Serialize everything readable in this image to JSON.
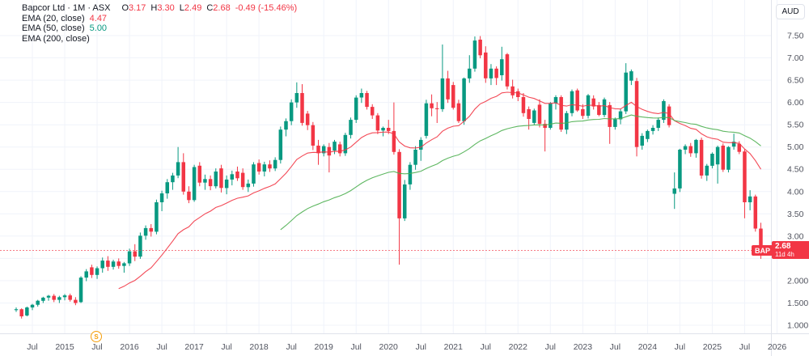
{
  "legend": {
    "symbol_title": "Bapcor Ltd · 1M · ASX",
    "ohlc": {
      "o_label": "O",
      "o": "3.17",
      "h_label": "H",
      "h": "3.30",
      "l_label": "L",
      "l": "2.49",
      "c_label": "C",
      "c": "2.68",
      "change": "-0.49 (-15.46%)"
    },
    "indicators": [
      {
        "label": "EMA (20, close)",
        "value": "4.47"
      },
      {
        "label": "EMA (50, close)",
        "value": "5.00"
      },
      {
        "label": "EMA (200, close)",
        "value": ""
      }
    ]
  },
  "price_axis": {
    "currency": "AUD",
    "tag": {
      "symbol": "BAP",
      "price": "2.68",
      "countdown": "11d 4h"
    }
  },
  "event_marker": {
    "label": "S"
  },
  "colors": {
    "up": "#089981",
    "down": "#f23645",
    "ema20": "#f23645",
    "ema50": "#4caf50",
    "grid": "#f0f3fa",
    "axis_text": "#50535e",
    "separator": "#e0e3eb",
    "last_price_line": "#f23645"
  },
  "chart_data": {
    "type": "candlestick",
    "title": "Bapcor Ltd",
    "exchange": "ASX",
    "interval": "1M",
    "currency": "AUD",
    "last_price": 2.68,
    "ylim": [
      0.82,
      8.3
    ],
    "x_range": [
      "2014-04",
      "2026-01"
    ],
    "grid": true,
    "y_ticks": [
      {
        "value": 7.5,
        "label": "7.50"
      },
      {
        "value": 7.0,
        "label": "7.00"
      },
      {
        "value": 6.5,
        "label": "6.50"
      },
      {
        "value": 6.0,
        "label": "6.00"
      },
      {
        "value": 5.5,
        "label": "5.50"
      },
      {
        "value": 5.0,
        "label": "5.00"
      },
      {
        "value": 4.5,
        "label": "4.50"
      },
      {
        "value": 4.0,
        "label": "4.00"
      },
      {
        "value": 3.5,
        "label": "3.50"
      },
      {
        "value": 3.0,
        "label": "3.00"
      },
      {
        "value": 2.5,
        "label": ""
      },
      {
        "value": 2.0,
        "label": "2.000"
      },
      {
        "value": 1.5,
        "label": "1.500"
      },
      {
        "value": 1.0,
        "label": "1.000"
      }
    ],
    "x_ticks": [
      {
        "bar": 3,
        "label": "Jul"
      },
      {
        "bar": 9,
        "label": "2015"
      },
      {
        "bar": 15,
        "label": "Jul"
      },
      {
        "bar": 21,
        "label": "2016"
      },
      {
        "bar": 27,
        "label": "Jul"
      },
      {
        "bar": 33,
        "label": "2017"
      },
      {
        "bar": 39,
        "label": "Jul"
      },
      {
        "bar": 45,
        "label": "2018"
      },
      {
        "bar": 51,
        "label": "Jul"
      },
      {
        "bar": 57,
        "label": "2019"
      },
      {
        "bar": 63,
        "label": "Jul"
      },
      {
        "bar": 69,
        "label": "2020"
      },
      {
        "bar": 75,
        "label": "Jul"
      },
      {
        "bar": 81,
        "label": "2021"
      },
      {
        "bar": 87,
        "label": "Jul"
      },
      {
        "bar": 93,
        "label": "2022"
      },
      {
        "bar": 99,
        "label": "Jul"
      },
      {
        "bar": 105,
        "label": "2023"
      },
      {
        "bar": 111,
        "label": "Jul"
      },
      {
        "bar": 117,
        "label": "2024"
      },
      {
        "bar": 123,
        "label": "Jul"
      },
      {
        "bar": 129,
        "label": "2025"
      },
      {
        "bar": 135,
        "label": "Jul"
      },
      {
        "bar": 141,
        "label": "2026"
      }
    ],
    "overlays": [
      {
        "name": "EMA",
        "period": 20,
        "color": "#f23645",
        "last_value": 4.47
      },
      {
        "name": "EMA",
        "period": 50,
        "color": "#4caf50",
        "last_value": 5.0
      },
      {
        "name": "EMA",
        "period": 200,
        "color": "#2962ff",
        "last_value": null
      }
    ],
    "event_markers": [
      {
        "bar": 15,
        "label": "S"
      }
    ],
    "ohlc_columns": [
      "month",
      "open",
      "high",
      "low",
      "close"
    ],
    "months": [
      [
        "2014-04",
        1.34,
        1.4,
        1.3,
        1.36
      ],
      [
        "2014-05",
        1.36,
        1.38,
        1.15,
        1.2
      ],
      [
        "2014-06",
        1.22,
        1.42,
        1.2,
        1.4
      ],
      [
        "2014-07",
        1.4,
        1.48,
        1.34,
        1.46
      ],
      [
        "2014-08",
        1.46,
        1.57,
        1.42,
        1.55
      ],
      [
        "2014-09",
        1.55,
        1.64,
        1.5,
        1.62
      ],
      [
        "2014-10",
        1.62,
        1.68,
        1.55,
        1.66
      ],
      [
        "2014-11",
        1.66,
        1.7,
        1.52,
        1.57
      ],
      [
        "2014-12",
        1.57,
        1.66,
        1.5,
        1.63
      ],
      [
        "2015-01",
        1.63,
        1.7,
        1.56,
        1.67
      ],
      [
        "2015-02",
        1.67,
        1.71,
        1.53,
        1.57
      ],
      [
        "2015-03",
        1.57,
        1.63,
        1.45,
        1.5
      ],
      [
        "2015-04",
        1.52,
        2.1,
        1.5,
        2.07
      ],
      [
        "2015-05",
        2.07,
        2.26,
        1.99,
        2.21
      ],
      [
        "2015-06",
        2.3,
        2.36,
        2.06,
        2.13
      ],
      [
        "2015-07",
        2.13,
        2.32,
        2.04,
        2.28
      ],
      [
        "2015-08",
        2.28,
        2.52,
        2.18,
        2.45
      ],
      [
        "2015-09",
        2.45,
        2.55,
        2.22,
        2.31
      ],
      [
        "2015-10",
        2.31,
        2.47,
        2.25,
        2.43
      ],
      [
        "2015-11",
        2.43,
        2.5,
        2.27,
        2.33
      ],
      [
        "2015-12",
        2.33,
        2.42,
        2.18,
        2.39
      ],
      [
        "2016-01",
        2.39,
        2.72,
        2.33,
        2.66
      ],
      [
        "2016-02",
        2.66,
        2.82,
        2.44,
        2.54
      ],
      [
        "2016-03",
        2.54,
        3.08,
        2.49,
        3.01
      ],
      [
        "2016-04",
        3.01,
        3.24,
        2.92,
        3.18
      ],
      [
        "2016-05",
        3.18,
        3.27,
        2.99,
        3.1
      ],
      [
        "2016-06",
        3.1,
        3.82,
        3.04,
        3.76
      ],
      [
        "2016-07",
        3.76,
        4.02,
        3.56,
        3.96
      ],
      [
        "2016-08",
        3.96,
        4.28,
        3.84,
        4.21
      ],
      [
        "2016-09",
        4.21,
        4.42,
        4.04,
        4.36
      ],
      [
        "2016-10",
        4.36,
        5.0,
        4.3,
        4.66
      ],
      [
        "2016-11",
        4.66,
        4.86,
        3.93,
        4.0
      ],
      [
        "2016-12",
        4.0,
        4.12,
        3.74,
        3.81
      ],
      [
        "2017-01",
        3.81,
        4.6,
        3.77,
        4.55
      ],
      [
        "2017-02",
        4.58,
        4.66,
        4.12,
        4.2
      ],
      [
        "2017-03",
        4.2,
        4.38,
        4.04,
        4.28
      ],
      [
        "2017-04",
        4.28,
        4.36,
        4.03,
        4.12
      ],
      [
        "2017-05",
        4.12,
        4.52,
        4.07,
        4.45
      ],
      [
        "2017-06",
        4.52,
        4.6,
        3.98,
        4.08
      ],
      [
        "2017-07",
        4.08,
        4.36,
        3.94,
        4.27
      ],
      [
        "2017-08",
        4.27,
        4.47,
        4.14,
        4.39
      ],
      [
        "2017-09",
        4.45,
        4.56,
        4.24,
        4.3
      ],
      [
        "2017-10",
        4.42,
        4.52,
        4.04,
        4.1
      ],
      [
        "2017-11",
        4.1,
        4.27,
        3.99,
        4.18
      ],
      [
        "2017-12",
        4.18,
        4.66,
        4.11,
        4.61
      ],
      [
        "2018-01",
        4.64,
        4.72,
        4.38,
        4.45
      ],
      [
        "2018-02",
        4.45,
        4.67,
        4.34,
        4.61
      ],
      [
        "2018-03",
        4.61,
        4.7,
        4.44,
        4.52
      ],
      [
        "2018-04",
        4.52,
        4.77,
        4.46,
        4.71
      ],
      [
        "2018-05",
        4.71,
        5.46,
        4.63,
        5.39
      ],
      [
        "2018-06",
        5.39,
        5.64,
        5.24,
        5.58
      ],
      [
        "2018-07",
        5.58,
        6.07,
        5.49,
        6.0
      ],
      [
        "2018-08",
        6.0,
        6.45,
        5.88,
        6.21
      ],
      [
        "2018-09",
        6.21,
        6.41,
        5.48,
        5.54
      ],
      [
        "2018-10",
        5.75,
        5.81,
        5.38,
        5.49
      ],
      [
        "2018-11",
        5.49,
        5.56,
        4.93,
        5.03
      ],
      [
        "2018-12",
        5.03,
        5.16,
        4.6,
        4.86
      ],
      [
        "2019-01",
        4.86,
        5.06,
        4.79,
        5.02
      ],
      [
        "2019-02",
        5.0,
        5.09,
        4.43,
        4.81
      ],
      [
        "2019-03",
        4.92,
        5.16,
        4.84,
        5.12
      ],
      [
        "2019-04",
        5.06,
        5.12,
        4.79,
        4.86
      ],
      [
        "2019-05",
        4.86,
        5.32,
        4.8,
        5.27
      ],
      [
        "2019-06",
        5.27,
        5.66,
        5.19,
        5.61
      ],
      [
        "2019-07",
        5.61,
        6.16,
        5.54,
        6.11
      ],
      [
        "2019-08",
        6.11,
        6.31,
        5.99,
        6.21
      ],
      [
        "2019-09",
        6.21,
        6.26,
        5.84,
        5.9
      ],
      [
        "2019-10",
        5.9,
        5.96,
        5.63,
        5.71
      ],
      [
        "2019-11",
        5.71,
        5.76,
        5.29,
        5.37
      ],
      [
        "2019-12",
        5.37,
        5.46,
        5.24,
        5.43
      ],
      [
        "2020-01",
        5.43,
        5.61,
        5.29,
        5.36
      ],
      [
        "2020-02",
        5.36,
        6.0,
        4.83,
        4.89
      ],
      [
        "2020-03",
        4.89,
        4.95,
        2.36,
        3.4
      ],
      [
        "2020-04",
        3.4,
        4.26,
        3.34,
        4.16
      ],
      [
        "2020-05",
        4.16,
        4.66,
        4.04,
        4.6
      ],
      [
        "2020-06",
        4.6,
        5.02,
        4.49,
        4.94
      ],
      [
        "2020-07",
        4.94,
        5.22,
        4.69,
        5.16
      ],
      [
        "2020-08",
        5.25,
        6.06,
        5.19,
        5.98
      ],
      [
        "2020-09",
        5.98,
        6.18,
        5.69,
        5.87
      ],
      [
        "2020-10",
        5.87,
        6.01,
        5.54,
        5.85
      ],
      [
        "2020-11",
        5.85,
        7.3,
        5.79,
        6.54
      ],
      [
        "2020-12",
        6.54,
        6.71,
        5.99,
        6.07
      ],
      [
        "2021-01",
        6.39,
        6.46,
        5.84,
        5.88
      ],
      [
        "2021-02",
        5.98,
        6.06,
        5.54,
        5.58
      ],
      [
        "2021-03",
        5.58,
        6.56,
        5.5,
        6.54
      ],
      [
        "2021-04",
        6.54,
        7.06,
        6.44,
        6.76
      ],
      [
        "2021-05",
        6.76,
        7.48,
        6.69,
        7.39
      ],
      [
        "2021-06",
        7.41,
        7.49,
        6.99,
        7.06
      ],
      [
        "2021-07",
        7.12,
        7.26,
        6.44,
        6.54
      ],
      [
        "2021-08",
        6.54,
        6.86,
        6.39,
        6.76
      ],
      [
        "2021-09",
        6.76,
        6.81,
        6.39,
        6.55
      ],
      [
        "2021-10",
        6.61,
        7.25,
        6.49,
        6.97
      ],
      [
        "2021-11",
        7.08,
        7.11,
        6.29,
        6.36
      ],
      [
        "2021-12",
        6.36,
        6.51,
        6.09,
        6.16
      ],
      [
        "2022-01",
        6.25,
        6.31,
        6.03,
        6.12
      ],
      [
        "2022-02",
        6.12,
        6.21,
        5.68,
        5.76
      ],
      [
        "2022-03",
        5.85,
        5.91,
        5.39,
        5.63
      ],
      [
        "2022-04",
        5.54,
        5.86,
        5.49,
        5.82
      ],
      [
        "2022-05",
        5.95,
        6.07,
        5.44,
        5.52
      ],
      [
        "2022-06",
        5.52,
        5.61,
        4.9,
        5.43
      ],
      [
        "2022-07",
        5.43,
        6.01,
        5.39,
        5.98
      ],
      [
        "2022-08",
        5.98,
        6.16,
        5.84,
        6.12
      ],
      [
        "2022-09",
        6.12,
        6.16,
        5.34,
        5.39
      ],
      [
        "2022-10",
        5.39,
        5.81,
        5.29,
        5.76
      ],
      [
        "2022-11",
        5.76,
        6.29,
        5.69,
        6.25
      ],
      [
        "2022-12",
        6.27,
        6.31,
        5.79,
        5.82
      ],
      [
        "2023-01",
        5.85,
        5.96,
        5.63,
        5.7
      ],
      [
        "2023-02",
        5.7,
        6.19,
        5.64,
        6.16
      ],
      [
        "2023-03",
        6.09,
        6.16,
        5.84,
        5.91
      ],
      [
        "2023-04",
        5.94,
        6.01,
        5.69,
        5.72
      ],
      [
        "2023-05",
        5.72,
        6.11,
        5.67,
        6.07
      ],
      [
        "2023-06",
        5.94,
        6.01,
        5.07,
        5.45
      ],
      [
        "2023-07",
        5.45,
        5.66,
        5.39,
        5.62
      ],
      [
        "2023-08",
        5.62,
        5.86,
        5.51,
        5.8
      ],
      [
        "2023-09",
        5.8,
        6.88,
        5.74,
        6.67
      ],
      [
        "2023-10",
        6.49,
        6.74,
        6.39,
        6.7
      ],
      [
        "2023-11",
        6.48,
        6.55,
        4.79,
        5.0
      ],
      [
        "2023-12",
        5.03,
        5.31,
        4.94,
        5.25
      ],
      [
        "2024-01",
        5.18,
        5.39,
        5.11,
        5.36
      ],
      [
        "2024-02",
        5.36,
        5.49,
        5.28,
        5.43
      ],
      [
        "2024-03",
        5.43,
        5.66,
        5.36,
        5.61
      ],
      [
        "2024-04",
        5.61,
        6.07,
        5.54,
        6.03
      ],
      [
        "2024-05",
        5.91,
        5.96,
        5.44,
        5.49
      ],
      [
        "2024-06",
        3.95,
        4.43,
        3.61,
        4.07
      ],
      [
        "2024-07",
        4.07,
        4.96,
        3.99,
        4.94
      ],
      [
        "2024-08",
        4.94,
        5.06,
        4.84,
        5.02
      ],
      [
        "2024-09",
        5.02,
        5.09,
        4.78,
        4.86
      ],
      [
        "2024-10",
        4.86,
        5.18,
        4.76,
        5.16
      ],
      [
        "2024-11",
        5.16,
        5.21,
        4.29,
        4.36
      ],
      [
        "2024-12",
        4.36,
        4.62,
        4.24,
        4.58
      ],
      [
        "2025-01",
        4.58,
        4.88,
        4.52,
        4.85
      ],
      [
        "2025-02",
        4.61,
        5.03,
        4.18,
        5.0
      ],
      [
        "2025-03",
        5.03,
        5.08,
        4.44,
        4.49
      ],
      [
        "2025-04",
        4.49,
        5.02,
        4.43,
        5.0
      ],
      [
        "2025-05",
        5.01,
        5.3,
        4.94,
        5.12
      ],
      [
        "2025-06",
        5.07,
        5.13,
        4.84,
        4.89
      ],
      [
        "2025-07",
        4.9,
        4.95,
        3.4,
        3.76
      ],
      [
        "2025-08",
        3.76,
        4.03,
        3.58,
        3.89
      ],
      [
        "2025-09",
        3.89,
        3.93,
        3.1,
        3.17
      ],
      [
        "2025-10",
        3.17,
        3.3,
        2.49,
        2.68
      ]
    ]
  }
}
